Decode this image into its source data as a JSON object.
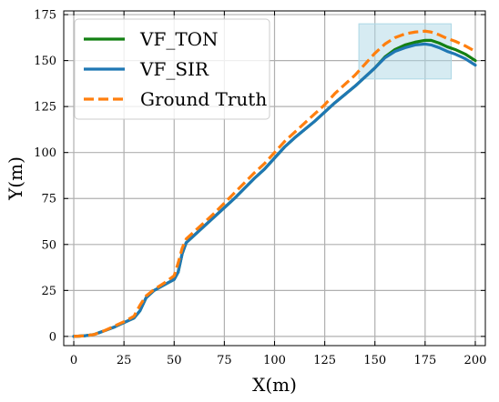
{
  "chart_data": {
    "type": "line",
    "title": "",
    "xlabel": "X(m)",
    "ylabel": "Y(m)",
    "xlim": [
      -5,
      205
    ],
    "ylim": [
      -5,
      177
    ],
    "xticks": [
      0,
      25,
      50,
      75,
      100,
      125,
      150,
      175,
      200
    ],
    "yticks": [
      0,
      25,
      50,
      75,
      100,
      125,
      150,
      175
    ],
    "grid": true,
    "legend": "top-left",
    "highlight_region": {
      "x": [
        142,
        188
      ],
      "y": [
        140,
        170
      ],
      "color": "#add8e6"
    },
    "series": [
      {
        "name": "VF_TON",
        "color": "#138013",
        "dash": "solid",
        "x": [
          0,
          5,
          10,
          15,
          20,
          25,
          30,
          33,
          36,
          40,
          45,
          50,
          52,
          54,
          56,
          60,
          65,
          70,
          80,
          90,
          95,
          100,
          105,
          110,
          120,
          125,
          130,
          140,
          145,
          150,
          155,
          160,
          165,
          170,
          175,
          178,
          182,
          186,
          190,
          195,
          200
        ],
        "y": [
          0,
          0.3,
          1,
          3,
          5,
          7.5,
          10,
          14,
          21,
          25,
          28,
          31,
          35,
          45,
          51,
          55,
          60,
          65,
          75,
          86,
          91,
          97,
          103,
          108,
          117,
          122,
          127,
          136,
          141,
          146,
          152,
          156,
          158.5,
          160,
          161,
          161,
          159.5,
          157.5,
          156,
          153.5,
          150
        ]
      },
      {
        "name": "VF_SIR",
        "color": "#1f77b4",
        "dash": "solid",
        "x": [
          0,
          5,
          10,
          15,
          20,
          25,
          30,
          33,
          36,
          40,
          45,
          50,
          52,
          54,
          56,
          60,
          65,
          70,
          80,
          90,
          95,
          100,
          105,
          110,
          120,
          125,
          130,
          140,
          145,
          150,
          155,
          160,
          165,
          170,
          175,
          178,
          182,
          186,
          190,
          195,
          200
        ],
        "y": [
          0,
          0.3,
          1,
          3,
          5,
          7.5,
          10,
          14,
          21,
          25,
          28,
          31,
          35,
          45,
          51,
          55,
          60,
          65,
          75,
          86,
          91,
          97,
          103,
          108,
          117,
          122,
          127,
          136,
          141,
          146,
          151.5,
          155,
          157,
          158.5,
          159,
          158.5,
          157,
          155,
          153.5,
          151,
          147.5
        ]
      },
      {
        "name": "Ground Truth",
        "color": "#ff7f0e",
        "dash": "dashed",
        "x": [
          0,
          5,
          10,
          15,
          20,
          25,
          30,
          33,
          36,
          40,
          45,
          50,
          52,
          54,
          56,
          60,
          65,
          70,
          80,
          90,
          95,
          100,
          105,
          110,
          120,
          125,
          130,
          140,
          145,
          150,
          155,
          160,
          165,
          170,
          175,
          178,
          182,
          186,
          190,
          195,
          200
        ],
        "y": [
          0,
          0.3,
          1,
          3,
          5.5,
          8,
          11,
          17,
          22,
          25.5,
          29,
          33,
          40,
          48,
          53,
          57,
          62,
          67,
          78,
          89,
          94,
          100,
          106,
          111,
          121,
          126,
          132,
          142,
          148,
          154,
          159,
          162.5,
          164.5,
          165.5,
          166,
          165.5,
          164,
          162,
          160.5,
          158,
          155
        ]
      }
    ]
  }
}
